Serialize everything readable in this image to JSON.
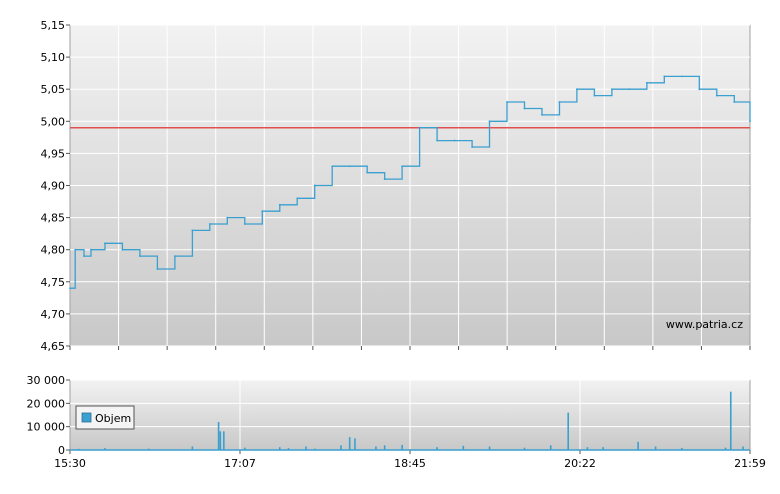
{
  "watermark": "www.patria.cz",
  "chart_data": [
    {
      "type": "line",
      "panel": "price",
      "ylim": [
        4.65,
        5.15
      ],
      "y_ticks": [
        "4,65",
        "4,70",
        "4,75",
        "4,80",
        "4,85",
        "4,90",
        "4,95",
        "5,00",
        "5,05",
        "5,10",
        "5,15"
      ],
      "reference_line": {
        "value": 4.99,
        "color": "#e05050"
      },
      "line_color": "#3aa0d0",
      "grid": true,
      "x_minutes_from_1530": [
        0,
        3,
        8,
        12,
        20,
        30,
        40,
        50,
        60,
        70,
        80,
        90,
        100,
        110,
        120,
        130,
        140,
        150,
        160,
        170,
        180,
        190,
        200,
        210,
        220,
        230,
        240,
        250,
        260,
        270,
        280,
        290,
        300,
        310,
        320,
        330,
        340,
        350,
        360,
        370,
        380,
        389
      ],
      "values": [
        4.74,
        4.8,
        4.79,
        4.8,
        4.81,
        4.8,
        4.79,
        4.77,
        4.79,
        4.83,
        4.84,
        4.85,
        4.84,
        4.86,
        4.87,
        4.88,
        4.9,
        4.93,
        4.93,
        4.92,
        4.91,
        4.93,
        4.99,
        4.97,
        4.97,
        4.96,
        5.0,
        5.03,
        5.02,
        5.01,
        5.03,
        5.05,
        5.04,
        5.05,
        5.05,
        5.06,
        5.07,
        5.07,
        5.05,
        5.04,
        5.03,
        5.0
      ]
    },
    {
      "type": "bar",
      "panel": "volume",
      "ylim": [
        0,
        30000
      ],
      "y_ticks": [
        "0",
        "10 000",
        "20 000",
        "30 000"
      ],
      "x_ticks": [
        "15:30",
        "17:07",
        "18:45",
        "20:22",
        "21:59"
      ],
      "legend": "Objem",
      "bar_color": "#3aa0d0",
      "x_minutes_from_1530": [
        5,
        20,
        45,
        70,
        85,
        86,
        88,
        100,
        120,
        125,
        135,
        140,
        155,
        160,
        163,
        175,
        180,
        190,
        210,
        225,
        240,
        260,
        275,
        285,
        296,
        305,
        325,
        335,
        350,
        375,
        378,
        385
      ],
      "values": [
        500,
        800,
        600,
        1500,
        12000,
        8000,
        8000,
        1000,
        1200,
        800,
        1500,
        600,
        2000,
        5500,
        5000,
        1500,
        2000,
        2200,
        1200,
        1800,
        1500,
        1000,
        2000,
        16000,
        1200,
        1200,
        3500,
        1500,
        900,
        1000,
        25000,
        1500
      ]
    }
  ]
}
